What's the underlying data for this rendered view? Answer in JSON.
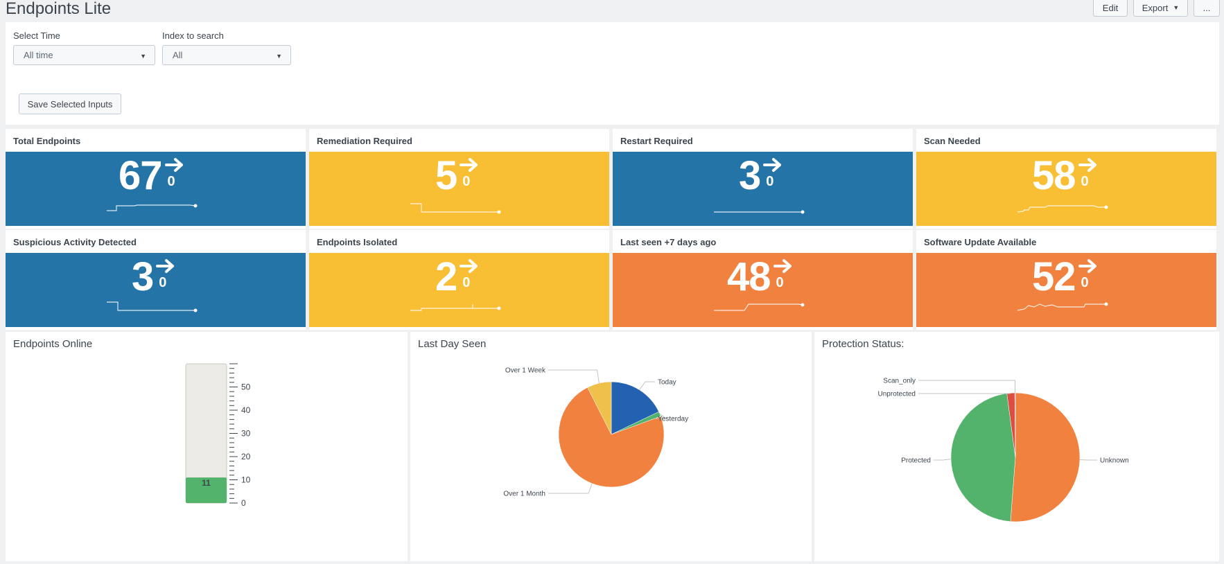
{
  "header": {
    "title": "Endpoints Lite",
    "edit_label": "Edit",
    "export_label": "Export",
    "more_label": "..."
  },
  "inputs": {
    "time_label": "Select Time",
    "time_value": "All time",
    "index_label": "Index to search",
    "index_value": "All",
    "save_label": "Save Selected Inputs"
  },
  "colors": {
    "blue": "#2574a8",
    "yellow": "#f8be34",
    "orange": "#f1813f",
    "green": "#53b36c",
    "pie_blue": "#2262b0",
    "pie_orange": "#f1813f",
    "pie_green": "#53b36c",
    "pie_yellow": "#f0c14a",
    "pie_red": "#dc4e41"
  },
  "single_values": [
    {
      "title": "Total Endpoints",
      "value": "67",
      "delta": "0",
      "color": "#2574a8",
      "trend_icon": "arrow-right-icon"
    },
    {
      "title": "Remediation Required",
      "value": "5",
      "delta": "0",
      "color": "#f8be34",
      "trend_icon": "arrow-right-icon"
    },
    {
      "title": "Restart Required",
      "value": "3",
      "delta": "0",
      "color": "#2574a8",
      "trend_icon": "arrow-right-icon"
    },
    {
      "title": "Scan Needed",
      "value": "58",
      "delta": "0",
      "color": "#f8be34",
      "trend_icon": "arrow-right-icon"
    },
    {
      "title": "Suspicious Activity Detected",
      "value": "3",
      "delta": "0",
      "color": "#2574a8",
      "trend_icon": "arrow-right-icon"
    },
    {
      "title": "Endpoints Isolated",
      "value": "2",
      "delta": "0",
      "color": "#f8be34",
      "trend_icon": "arrow-right-icon"
    },
    {
      "title": "Last seen +7 days ago",
      "value": "48",
      "delta": "0",
      "color": "#f1813f",
      "trend_icon": "arrow-right-icon"
    },
    {
      "title": "Software Update Available",
      "value": "52",
      "delta": "0",
      "color": "#f1813f",
      "trend_icon": "arrow-right-icon"
    }
  ],
  "charts": {
    "online_title": "Endpoints Online",
    "lastday_title": "Last Day Seen",
    "protection_title": "Protection Status:"
  },
  "chart_data": [
    {
      "type": "gauge",
      "title": "Endpoints Online",
      "value": 11,
      "value_label": "11",
      "range": [
        0,
        60
      ],
      "tick_labels": [
        "0",
        "10",
        "20",
        "30",
        "40",
        "50"
      ],
      "fill_color": "#53b36c"
    },
    {
      "type": "pie",
      "title": "Last Day Seen",
      "labels": [
        "Today",
        "Yesterday",
        "Over 1 Month",
        "Over 1 Week"
      ],
      "values": [
        12,
        1,
        49,
        5
      ],
      "colors": [
        "#2262b0",
        "#53b36c",
        "#f1813f",
        "#f0c14a"
      ]
    },
    {
      "type": "pie",
      "title": "Protection Status:",
      "labels": [
        "Unknown",
        "Protected",
        "Unprotected",
        "Scan_only"
      ],
      "values": [
        34,
        31,
        1.3,
        0.1
      ],
      "colors": [
        "#f1813f",
        "#53b36c",
        "#dc4e41",
        "#8a5fb4"
      ]
    }
  ]
}
